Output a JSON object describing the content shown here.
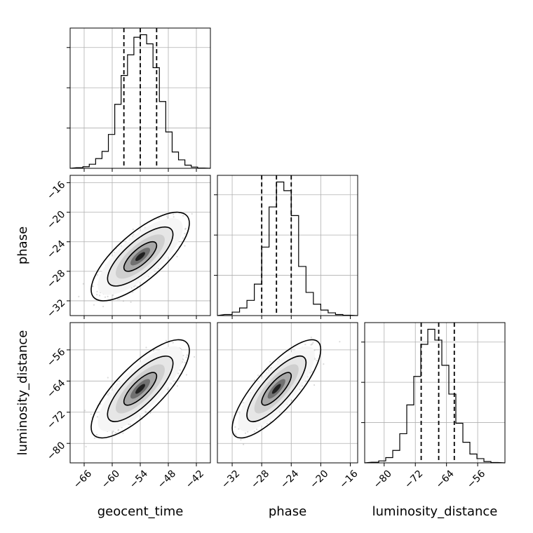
{
  "chart_data": {
    "type": "corner",
    "parameters": [
      {
        "name": "geocent_time",
        "label": "geocent_time",
        "range": [
          -69,
          -39
        ],
        "ticks": [
          -66,
          -60,
          -54,
          -48,
          -42
        ],
        "median": -54.0,
        "q16": -57.5,
        "q84": -50.5,
        "hist": [
          0.2,
          0.5,
          1.3,
          3.1,
          5.4,
          10.8,
          20.4,
          29.6,
          36.2,
          41.8,
          42.6,
          39.7,
          32.1,
          21.3,
          11.6,
          5.2,
          2.7,
          1.0,
          0.4,
          0.1
        ]
      },
      {
        "name": "phase",
        "label": "phase",
        "range": [
          -34,
          -15
        ],
        "ticks": [
          -32,
          -28,
          -24,
          -20,
          -16
        ],
        "median": -26.0,
        "q16": -28.0,
        "q84": -24.0,
        "hist": [
          0.3,
          1.0,
          2.2,
          4.4,
          9.1,
          19.8,
          31.4,
          38.6,
          36.1,
          28.9,
          14.2,
          6.7,
          3.3,
          1.6,
          0.8,
          0.3,
          0.1
        ]
      },
      {
        "name": "luminosity_distance",
        "label": "luminosity_distance",
        "range": [
          -85,
          -49
        ],
        "ticks": [
          -80,
          -72,
          -64,
          -56
        ],
        "median": -66.0,
        "q16": -70.5,
        "q84": -62.0,
        "hist": [
          0.2,
          0.6,
          1.6,
          3.8,
          8.9,
          17.7,
          26.4,
          36.2,
          40.8,
          37.5,
          29.8,
          21.0,
          12.1,
          6.3,
          2.7,
          1.3,
          0.4,
          0.1
        ]
      }
    ],
    "correlations": [
      {
        "x": "geocent_time",
        "y": "phase",
        "mean": [
          -54.0,
          -26.0
        ],
        "sd": [
          3.5,
          2.0
        ],
        "rho": 0.75
      },
      {
        "x": "geocent_time",
        "y": "luminosity_distance",
        "mean": [
          -54.0,
          -66.0
        ],
        "sd": [
          3.5,
          4.2
        ],
        "rho": 0.78
      },
      {
        "x": "phase",
        "y": "luminosity_distance",
        "mean": [
          -26.0,
          -66.0
        ],
        "sd": [
          2.0,
          4.2
        ],
        "rho": 0.8
      }
    ],
    "y_ranges": {
      "phase": [
        -34,
        -15
      ],
      "luminosity_distance": [
        -85,
        -49
      ]
    },
    "y_ticks": {
      "phase": [
        -32,
        -28,
        -24,
        -20,
        -16
      ],
      "luminosity_distance": [
        -80,
        -72,
        -64,
        -56
      ]
    },
    "contour_levels": [
      "39%",
      "86%",
      "99%"
    ],
    "grid": true,
    "colors": {
      "line": "#000000",
      "points": "#999999",
      "grid": "#b0b0b0"
    }
  }
}
